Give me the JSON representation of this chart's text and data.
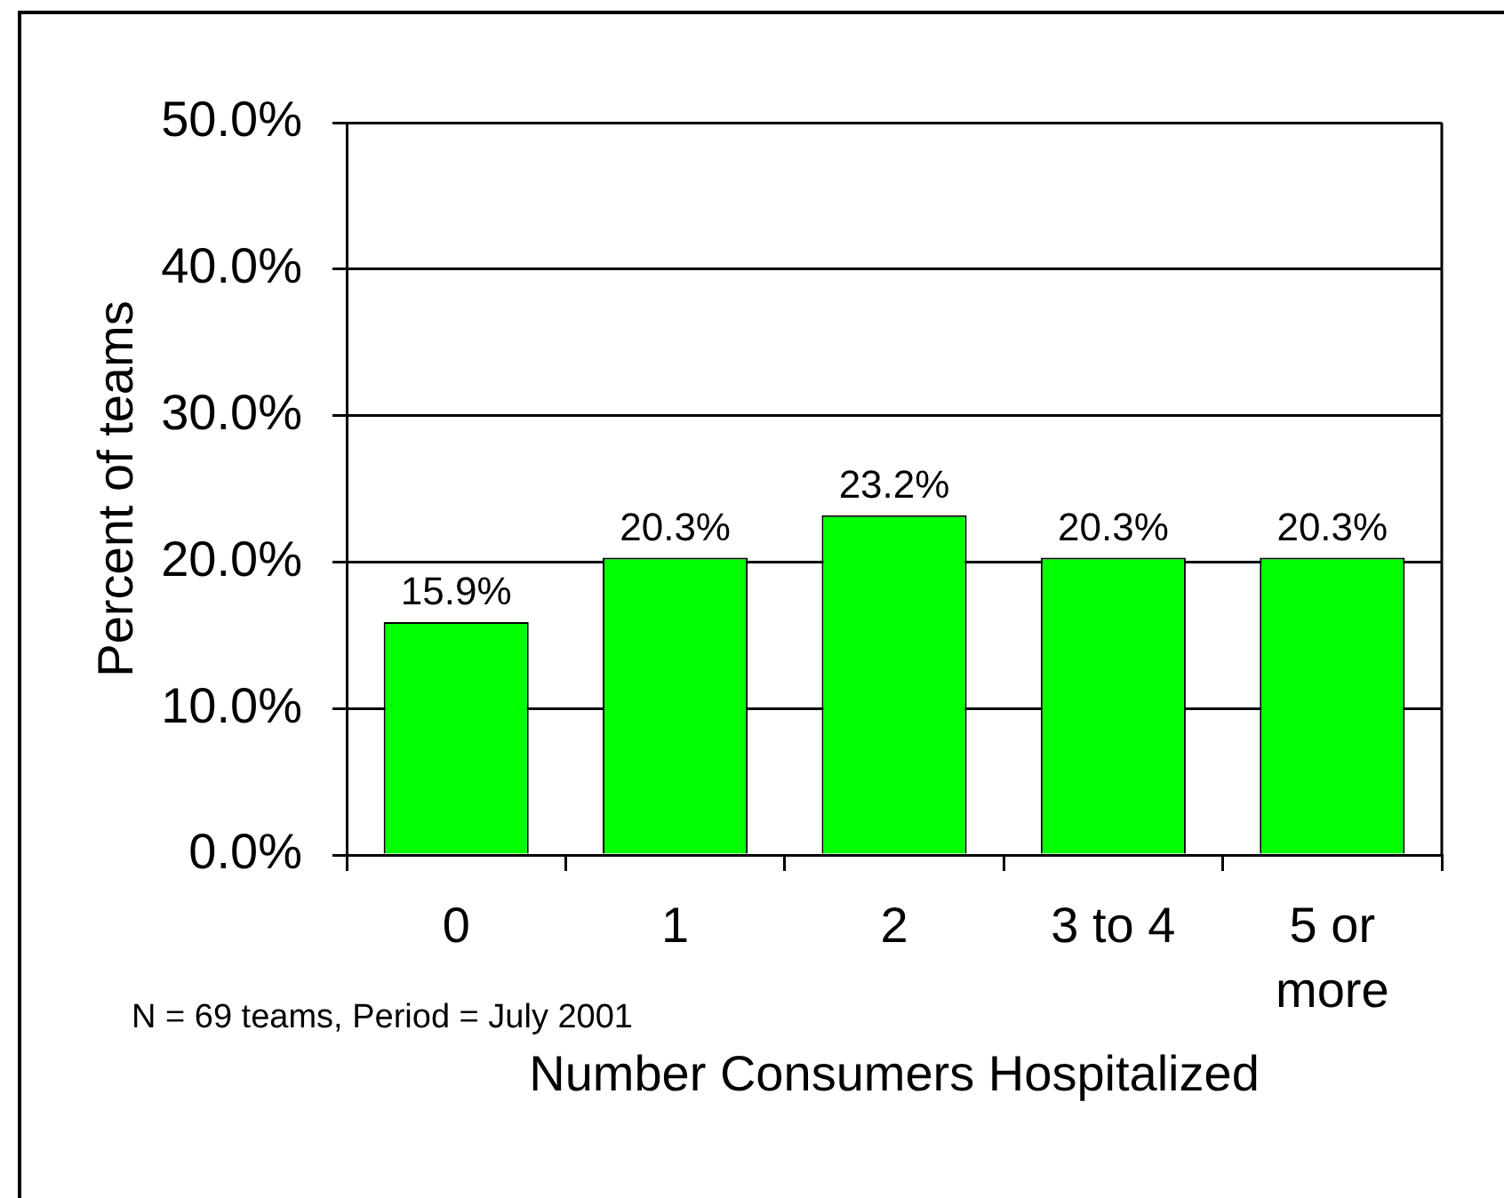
{
  "chart_data": {
    "type": "bar",
    "xlabel": "Number Consumers Hospitalized",
    "ylabel": "Percent of teams",
    "categories": [
      "0",
      "1",
      "2",
      "3 to 4",
      "5 or more"
    ],
    "values": [
      15.9,
      20.3,
      23.2,
      20.3,
      20.3
    ],
    "color": "#00ff00",
    "value_labels": [
      "15.9%",
      "20.3%",
      "23.2%",
      "20.3%",
      "20.3%"
    ],
    "ylim": [
      0,
      50
    ],
    "yticks": [
      {
        "value": 0,
        "label": "0.0%"
      },
      {
        "value": 10,
        "label": "10.0%"
      },
      {
        "value": 20,
        "label": "20.0%"
      },
      {
        "value": 30,
        "label": "30.0%"
      },
      {
        "value": 40,
        "label": "40.0%"
      },
      {
        "value": 50,
        "label": "50.0%"
      }
    ],
    "grid": "y",
    "annotations": [
      "N = 69 teams, Period = July 2001"
    ]
  }
}
